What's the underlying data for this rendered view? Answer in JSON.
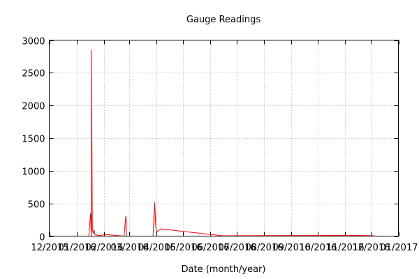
{
  "chart_data": {
    "type": "line",
    "title": "Gauge Readings",
    "xlabel": "Date (month/year)",
    "ylabel": "",
    "ylim": [
      0,
      3000
    ],
    "xlim": [
      "2015-12-01",
      "2017-01-01"
    ],
    "yticks": [
      0,
      500,
      1000,
      1500,
      2000,
      2500,
      3000
    ],
    "xticks": [
      {
        "date": "2015-12-01",
        "label": "12/2015"
      },
      {
        "date": "2016-01-01",
        "label": "01/2016"
      },
      {
        "date": "2016-02-01",
        "label": "02/2016"
      },
      {
        "date": "2016-03-01",
        "label": "03/2016"
      },
      {
        "date": "2016-04-01",
        "label": "04/2016"
      },
      {
        "date": "2016-05-01",
        "label": "05/2016"
      },
      {
        "date": "2016-06-01",
        "label": "06/2016"
      },
      {
        "date": "2016-07-01",
        "label": "07/2016"
      },
      {
        "date": "2016-08-01",
        "label": "08/2016"
      },
      {
        "date": "2016-09-01",
        "label": "09/2016"
      },
      {
        "date": "2016-10-01",
        "label": "10/2016"
      },
      {
        "date": "2016-11-01",
        "label": "11/2016"
      },
      {
        "date": "2016-12-01",
        "label": "12/2016"
      },
      {
        "date": "2017-01-01",
        "label": "01/2017"
      }
    ],
    "grid": true,
    "series": [
      {
        "color": "#ff0000",
        "x": [
          "2016-01-15",
          "2016-01-17",
          "2016-01-18",
          "2016-01-18",
          "2016-01-19",
          "2016-01-20",
          "2016-01-21",
          "2016-01-22",
          "2016-01-24",
          "2016-01-27",
          "2016-02-03",
          "2016-02-24",
          "2016-02-26",
          "2016-02-27",
          "2016-03-28",
          "2016-03-30",
          "2016-03-31",
          "2016-04-01",
          "2016-04-06",
          "2016-06-15",
          "2016-08-02",
          "2016-10-10",
          "2016-11-05",
          "2016-12-04"
        ],
        "values": [
          0,
          350,
          0,
          2850,
          120,
          40,
          90,
          20,
          15,
          10,
          25,
          0,
          310,
          0,
          0,
          520,
          150,
          60,
          110,
          5,
          8,
          10,
          12,
          6
        ]
      }
    ]
  }
}
